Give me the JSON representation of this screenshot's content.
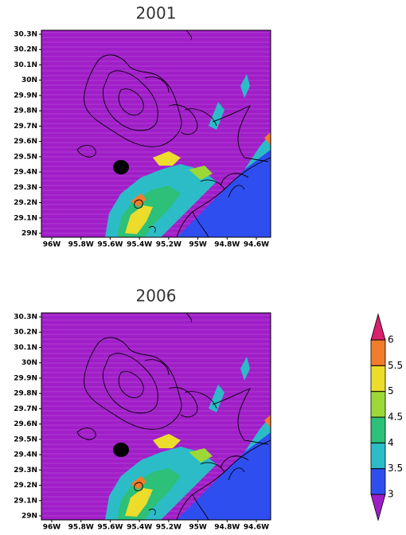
{
  "panels": [
    {
      "title": "2001",
      "y_labels": [
        "30.3N",
        "30.2N",
        "30.1N",
        "30N",
        "29.9N",
        "29.8N",
        "29.7N",
        "29.6N",
        "29.5N",
        "29.4N",
        "29.3N",
        "29.2N",
        "29.1N",
        "29N"
      ],
      "x_labels": [
        "96W",
        "95.8W",
        "95.6W",
        "95.4W",
        "95.2W",
        "95W",
        "94.8W",
        "94.6W"
      ]
    },
    {
      "title": "2006",
      "y_labels": [
        "30.3N",
        "30.2N",
        "30.1N",
        "30N",
        "29.9N",
        "29.8N",
        "29.7N",
        "29.6N",
        "29.5N",
        "29.4N",
        "29.3N",
        "29.2N",
        "29.1N",
        "29N"
      ],
      "x_labels": [
        "96W",
        "95.8W",
        "95.6W",
        "95.4W",
        "95.2W",
        "95W",
        "94.8W",
        "94.6W"
      ]
    }
  ],
  "colorbar": {
    "levels": [
      3,
      3.5,
      4,
      4.5,
      5,
      5.5,
      6
    ],
    "colors": [
      "#a01ec8",
      "#2f4ef0",
      "#2cbcc8",
      "#2cc078",
      "#9cd838",
      "#ecdc2c",
      "#f07c2c",
      "#d8206c"
    ]
  }
}
